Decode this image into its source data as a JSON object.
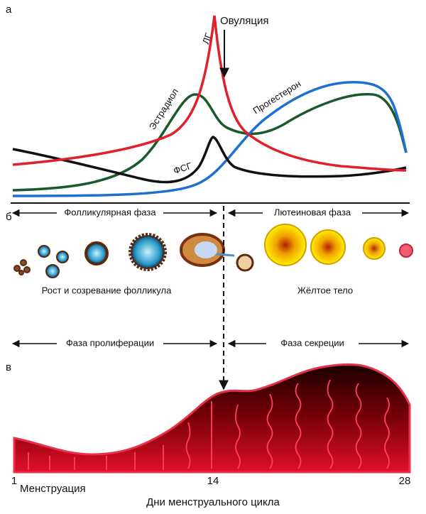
{
  "panel_a": {
    "letter": "а",
    "ovulation": "Овуляция",
    "curves": {
      "lh": "ЛГ",
      "estradiol": "Эстрадиол",
      "progesterone": "Прогестерон",
      "fsh": "ФСГ"
    }
  },
  "panel_b": {
    "letter": "б",
    "phases": [
      "Фолликулярная фаза",
      "Лютеиновая фаза"
    ],
    "captions": [
      "Рост и созревание фолликула",
      "Жёлтое тело"
    ],
    "uterine_phases": [
      "Фаза пролиферации",
      "Фаза секреции"
    ]
  },
  "panel_c": {
    "letter": "в",
    "days": [
      "1",
      "14",
      "28"
    ],
    "menstruation": "Менструация",
    "axis_title": "Дни менструального цикла"
  }
}
